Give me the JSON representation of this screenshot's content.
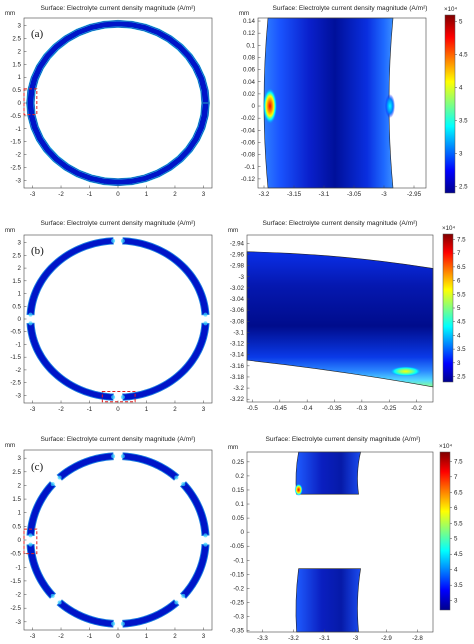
{
  "figure": {
    "panel_labels": [
      "(a)",
      "(b)",
      "(c)"
    ],
    "left_title": "Surface: Electrolyte current density magnitude (A/m²)",
    "right_title": "Surface: Electrolyte current density magnitude (A/m²)",
    "axis_unit": "mm"
  },
  "colors": {
    "colormap": [
      "#00008b",
      "#0000ff",
      "#0080ff",
      "#00ffff",
      "#80ff80",
      "#ffff00",
      "#ff8000",
      "#ff0000",
      "#800000"
    ],
    "frame": "#444444",
    "highlight_box": "#e02020",
    "background": "#ffffff"
  },
  "chart_data": [
    {
      "type": "heatmap",
      "panel": "(a)",
      "geometry": "full ring electrolyte, no gaps",
      "title": "Surface: Electrolyte current density magnitude (A/m²)",
      "ylabel": "mm",
      "xlim": [
        -3.3,
        3.3
      ],
      "ylim": [
        -3.3,
        3.3
      ],
      "xticks": [
        "-3",
        "-2",
        "-1",
        "0",
        "1",
        "2",
        "3"
      ],
      "yticks": [
        "3",
        "2.5",
        "2",
        "1.5",
        "1",
        "0.5",
        "0",
        "-0.5",
        "-1",
        "-1.5",
        "-2",
        "-2.5",
        "-3"
      ],
      "ring_outer_radius": 3.2,
      "ring_inner_radius": 2.95,
      "gap_angles_deg": [],
      "highlight_region": {
        "x": [
          -3.3,
          -2.85
        ],
        "y": [
          -0.45,
          0.55
        ]
      }
    },
    {
      "type": "heatmap",
      "panel": "(a)",
      "geometry": "zoom of ring section near x=-3.1",
      "title": "Surface: Electrolyte current density magnitude (A/m²)",
      "ylabel": "mm",
      "xlim": [
        -3.21,
        -2.93
      ],
      "ylim": [
        -0.135,
        0.145
      ],
      "xticks": [
        "-3.2",
        "-3.15",
        "-3.1",
        "-3.05",
        "-3",
        "-2.95"
      ],
      "yticks": [
        "0.14",
        "0.12",
        "0.1",
        "0.08",
        "0.06",
        "0.04",
        "0.02",
        "0",
        "-0.02",
        "-0.04",
        "-0.06",
        "-0.08",
        "-0.1",
        "-0.12"
      ],
      "colorbar": {
        "exponent": "×10⁴",
        "ticks": [
          "5",
          "4.5",
          "4",
          "3.5",
          "3",
          "2.5"
        ],
        "min": 2.4,
        "max": 5.1
      },
      "hotspots": [
        {
          "x": -3.19,
          "y": 0.0,
          "value": 4.9
        },
        {
          "x": -2.99,
          "y": 0.0,
          "value": 3.2
        }
      ]
    },
    {
      "type": "heatmap",
      "panel": "(b)",
      "geometry": "ring with 4 gaps",
      "title": "Surface: Electrolyte current density magnitude (A/m²)",
      "ylabel": "mm",
      "xlim": [
        -3.3,
        3.3
      ],
      "ylim": [
        -3.3,
        3.3
      ],
      "xticks": [
        "-3",
        "-2",
        "-1",
        "0",
        "1",
        "2",
        "3"
      ],
      "yticks": [
        "3",
        "2.5",
        "2",
        "1.5",
        "1",
        "0.5",
        "0",
        "-0.5",
        "-1",
        "-1.5",
        "-2",
        "-2.5",
        "-3"
      ],
      "ring_outer_radius": 3.2,
      "ring_inner_radius": 2.95,
      "gap_angles_deg": [
        90,
        180,
        270,
        0
      ],
      "highlight_region": {
        "x": [
          -0.55,
          0.6
        ],
        "y": [
          -3.25,
          -2.85
        ]
      }
    },
    {
      "type": "heatmap",
      "panel": "(b)",
      "geometry": "zoom of ring section near y=-3.06",
      "title": "Surface: Electrolyte current density magnitude (A/m²)",
      "ylabel": "mm",
      "xlim": [
        -0.51,
        -0.17
      ],
      "ylim": [
        -3.225,
        -2.925
      ],
      "xticks": [
        "-0.5",
        "-0.45",
        "-0.4",
        "-0.35",
        "-0.3",
        "-0.25",
        "-0.2"
      ],
      "yticks": [
        "-2.94",
        "-2.96",
        "-2.98",
        "-3",
        "-3.02",
        "-3.04",
        "-3.06",
        "-3.08",
        "-3.1",
        "-3.12",
        "-3.14",
        "-3.16",
        "-3.18",
        "-3.2",
        "-3.22"
      ],
      "colorbar": {
        "exponent": "×10⁴",
        "ticks": [
          "7.5",
          "7",
          "6.5",
          "6",
          "5.5",
          "5",
          "4.5",
          "4",
          "3.5",
          "3",
          "2.5"
        ],
        "min": 2.3,
        "max": 7.7
      },
      "hotspots": [
        {
          "x": -0.22,
          "y": -3.17,
          "value": 6.2
        }
      ]
    },
    {
      "type": "heatmap",
      "panel": "(c)",
      "geometry": "ring with 8 gaps",
      "title": "Surface: Electrolyte current density magnitude (A/m²)",
      "ylabel": "mm",
      "xlim": [
        -3.3,
        3.3
      ],
      "ylim": [
        -3.3,
        3.3
      ],
      "xticks": [
        "-3",
        "-2",
        "-1",
        "0",
        "1",
        "2",
        "3"
      ],
      "yticks": [
        "3",
        "2.5",
        "2",
        "1.5",
        "1",
        "0.5",
        "0",
        "-0.5",
        "-1",
        "-1.5",
        "-2",
        "-2.5",
        "-3"
      ],
      "ring_outer_radius": 3.2,
      "ring_inner_radius": 2.95,
      "gap_angles_deg": [
        0,
        45,
        90,
        135,
        180,
        225,
        270,
        315
      ],
      "highlight_region": {
        "x": [
          -3.3,
          -2.85
        ],
        "y": [
          -0.5,
          0.4
        ]
      }
    },
    {
      "type": "heatmap",
      "panel": "(c)",
      "geometry": "zoom of two ring segments near x=-3.1 separated by a gap",
      "title": "Surface: Electrolyte current density magnitude (A/m²)",
      "ylabel": "mm",
      "xlim": [
        -3.35,
        -2.75
      ],
      "ylim": [
        -0.355,
        0.285
      ],
      "xticks": [
        "-3.3",
        "-3.2",
        "-3.1",
        "-3",
        "-2.9",
        "-2.8"
      ],
      "yticks": [
        "0.25",
        "0.2",
        "0.15",
        "0.1",
        "0.05",
        "0",
        "-0.05",
        "-0.1",
        "-0.15",
        "-0.2",
        "-0.25",
        "-0.3",
        "-0.35"
      ],
      "colorbar": {
        "exponent": "×10⁴",
        "ticks": [
          "7.5",
          "7",
          "6.5",
          "6",
          "5.5",
          "5",
          "4.5",
          "4",
          "3.5",
          "3"
        ],
        "min": 2.7,
        "max": 7.8
      },
      "segments_y": [
        [
          0.135,
          0.285
        ],
        [
          -0.355,
          -0.13
        ]
      ],
      "hotspots": [
        {
          "x": -3.19,
          "y": 0.14,
          "value": 7.6
        }
      ]
    }
  ]
}
